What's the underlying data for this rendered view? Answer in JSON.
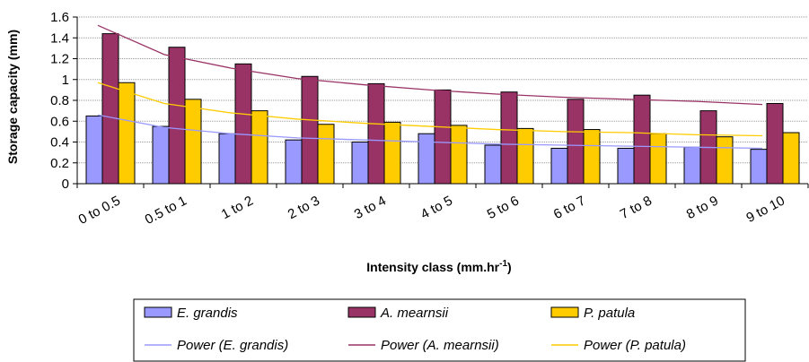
{
  "chart_data": {
    "type": "bar",
    "title": "",
    "xlabel": "Intensity class (mm.hr",
    "xlabel_sup": "-1",
    "xlabel_suffix": ")",
    "ylabel": "Storage capacity (mm)",
    "ylim": [
      0,
      1.6
    ],
    "yticks": [
      "0",
      "0.2",
      "0.4",
      "0.6",
      "0.8",
      "1",
      "1.2",
      "1.4",
      "1.6"
    ],
    "grid": true,
    "legend_position": "bottom",
    "categories": [
      "0 to 0.5",
      "0.5 to 1",
      "1 to 2",
      "2 to 3",
      "3 to 4",
      "4 to 5",
      "5 to 6",
      "6 to 7",
      "7 to 8",
      "8 to 9",
      "9 to 10"
    ],
    "series": [
      {
        "name": "E. grandis",
        "color": "#9999ff",
        "values": [
          0.65,
          0.55,
          0.48,
          0.42,
          0.4,
          0.48,
          0.37,
          0.34,
          0.34,
          0.35,
          0.33
        ]
      },
      {
        "name": "A. mearnsii",
        "color": "#993366",
        "values": [
          1.44,
          1.31,
          1.15,
          1.03,
          0.96,
          0.9,
          0.88,
          0.81,
          0.85,
          0.7,
          0.77
        ]
      },
      {
        "name": "P. patula",
        "color": "#ffcc00",
        "values": [
          0.97,
          0.81,
          0.7,
          0.57,
          0.59,
          0.56,
          0.53,
          0.52,
          0.48,
          0.45,
          0.49
        ]
      }
    ],
    "trendlines": [
      {
        "name": "Power (E. grandis)",
        "color": "#9999ff",
        "values": [
          0.66,
          0.54,
          0.48,
          0.44,
          0.42,
          0.4,
          0.38,
          0.37,
          0.36,
          0.35,
          0.34
        ]
      },
      {
        "name": "Power (A. mearnsii)",
        "color": "#993366",
        "values": [
          1.52,
          1.24,
          1.11,
          1.01,
          0.95,
          0.9,
          0.86,
          0.83,
          0.81,
          0.79,
          0.76
        ]
      },
      {
        "name": "Power (P. patula)",
        "color": "#ffcc00",
        "values": [
          0.97,
          0.77,
          0.68,
          0.62,
          0.58,
          0.55,
          0.52,
          0.5,
          0.49,
          0.47,
          0.46
        ]
      }
    ]
  }
}
